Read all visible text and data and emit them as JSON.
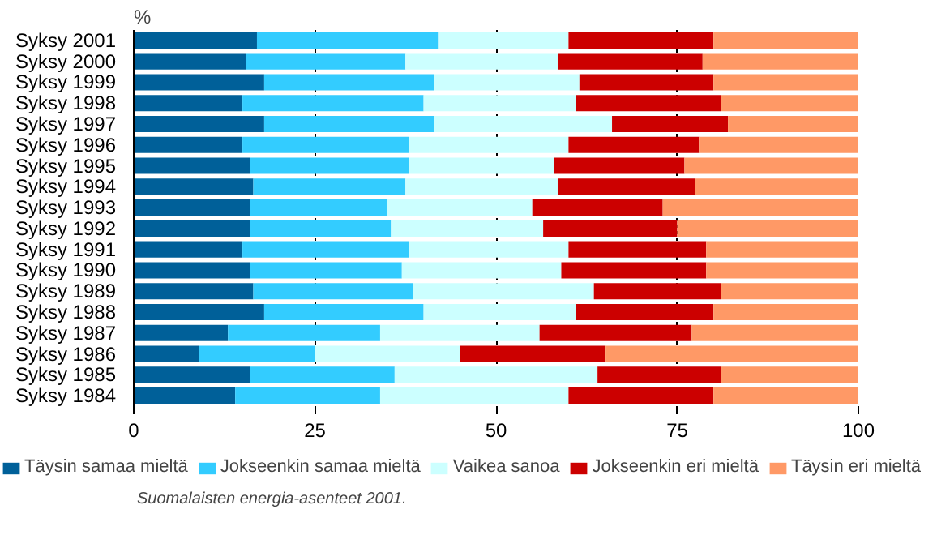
{
  "chart_data": {
    "type": "bar",
    "orientation": "horizontal",
    "stacked": true,
    "xlabel": "%",
    "categories": [
      "Syksy 2001",
      "Syksy 2000",
      "Syksy 1999",
      "Syksy 1998",
      "Syksy 1997",
      "Syksy 1996",
      "Syksy 1995",
      "Syksy 1994",
      "Syksy 1993",
      "Syksy 1992",
      "Syksy 1991",
      "Syksy 1990",
      "Syksy 1989",
      "Syksy 1988",
      "Syksy 1987",
      "Syksy 1986",
      "Syksy 1985",
      "Syksy 1984"
    ],
    "series": [
      {
        "name": "Täysin samaa mieltä",
        "color": "#006099",
        "values": [
          17,
          15.5,
          18,
          15,
          18,
          15,
          16,
          16.5,
          16,
          16,
          15,
          16,
          16.5,
          18,
          13,
          9,
          16,
          14
        ]
      },
      {
        "name": "Jokseenkin samaa mieltä",
        "color": "#33ccff",
        "values": [
          25,
          22,
          23.5,
          25,
          23.5,
          23,
          22,
          21,
          19,
          19.5,
          23,
          21,
          22,
          22,
          21,
          16,
          20,
          20
        ]
      },
      {
        "name": "Vaikea sanoa",
        "color": "#ccffff",
        "values": [
          18,
          21,
          20,
          21,
          24.5,
          22,
          20,
          21,
          20,
          21,
          22,
          22,
          25,
          21,
          22,
          20,
          28,
          26
        ]
      },
      {
        "name": "Jokseenkin eri mieltä",
        "color": "#cc0000",
        "values": [
          20,
          20,
          18.5,
          20,
          16,
          18,
          18,
          19,
          18,
          18.5,
          19,
          20,
          17.5,
          19,
          21,
          20,
          17,
          20
        ]
      },
      {
        "name": "Täysin eri mieltä",
        "color": "#ff9966",
        "values": [
          20,
          21.5,
          20,
          19,
          18,
          22,
          24,
          22.5,
          27,
          25,
          21,
          21,
          19,
          20,
          23,
          35,
          19,
          20
        ]
      }
    ],
    "xlim": [
      0,
      100
    ],
    "xticks": [
      0,
      25,
      50,
      75,
      100
    ],
    "grid": "x",
    "legend": "bottom",
    "annotations": [
      "Suomalaisten energia-asenteet 2001."
    ]
  }
}
